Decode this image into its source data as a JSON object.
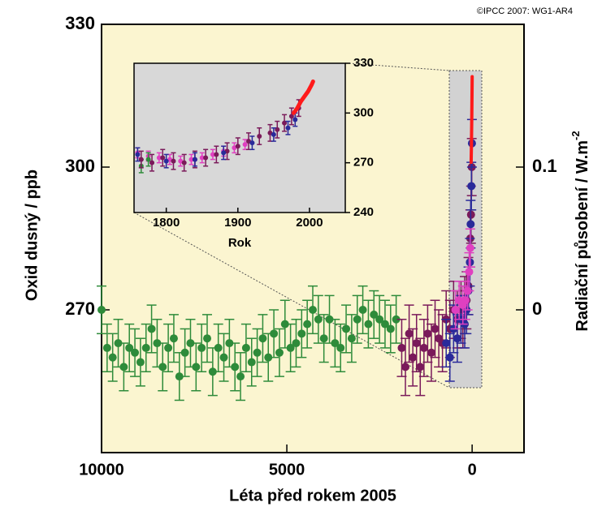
{
  "chart_data": [
    {
      "type": "scatter",
      "xlabel": "Léta před rokem 2005",
      "ylabel": "Oxid dusný  /  ppb",
      "y2label": "Radiační působení  /  W.m",
      "y2label_sup": "-2",
      "credit": "©IPCC 2007: WG1-AR4",
      "xlim": [
        10000,
        -1400
      ],
      "xticks": [
        10000,
        5000,
        0
      ],
      "ylim": [
        240,
        330
      ],
      "yticks": [
        270,
        300,
        330
      ],
      "y2lim": [
        -0.1,
        0.2
      ],
      "y2ticks": [
        0,
        0.1
      ],
      "series": [
        {
          "color": "#2e8b3a",
          "yerr": 5,
          "x": [
            10000,
            9850,
            9700,
            9550,
            9400,
            9250,
            9100,
            8950,
            8800,
            8650,
            8500,
            8350,
            8200,
            8050,
            7900,
            7750,
            7600,
            7450,
            7300,
            7150,
            7000,
            6850,
            6700,
            6550,
            6400,
            6250,
            6100,
            5950,
            5800,
            5650,
            5500,
            5350,
            5200,
            5050,
            4900,
            4750,
            4600,
            4450,
            4300,
            4150,
            4000,
            3850,
            3700,
            3550,
            3400,
            3250,
            3100,
            2950,
            2800,
            2650,
            2500,
            2350,
            2200,
            2050
          ],
          "values": [
            270,
            262,
            260,
            263,
            258,
            262,
            261,
            259,
            262,
            266,
            263,
            258,
            262,
            264,
            256,
            261,
            263,
            258,
            262,
            264,
            257,
            262,
            260,
            263,
            258,
            256,
            262,
            259,
            261,
            264,
            260,
            265,
            261,
            267,
            262,
            263,
            265,
            267,
            270,
            268,
            264,
            268,
            263,
            262,
            266,
            264,
            268,
            270,
            267,
            269,
            268,
            267,
            266,
            268
          ]
        },
        {
          "color": "#7a1a5a",
          "yerr": 6,
          "x": [
            1900,
            1800,
            1700,
            1600,
            1500,
            1400,
            1300,
            1200,
            1100,
            1000,
            900,
            800,
            700,
            600,
            500,
            400,
            300,
            250,
            200,
            150,
            100,
            50,
            30,
            10
          ],
          "values": [
            262,
            258,
            265,
            260,
            263,
            258,
            262,
            265,
            261,
            266,
            264,
            263,
            268,
            266,
            270,
            268,
            270,
            268,
            271,
            272,
            275,
            285,
            290,
            300
          ]
        },
        {
          "color": "#2a2a9a",
          "yerr": 5,
          "x": [
            700,
            600,
            500,
            400,
            300,
            200,
            150,
            100,
            60,
            40,
            20,
            5
          ],
          "values": [
            263,
            260,
            266,
            264,
            268,
            267,
            270,
            274,
            280,
            288,
            296,
            305
          ]
        },
        {
          "color": "#e040c0",
          "yerr": 4,
          "x": [
            450,
            350,
            250,
            180,
            120,
            80,
            50
          ],
          "values": [
            270,
            272,
            271,
            272,
            274,
            278,
            283
          ]
        },
        {
          "color": "#ff1a1a",
          "type": "line",
          "x": [
            27,
            20,
            15,
            10,
            5,
            0,
            -1
          ],
          "values": [
            301,
            304,
            307,
            310,
            314,
            318,
            319
          ]
        }
      ]
    },
    {
      "type": "scatter",
      "xlabel": "Rok",
      "xlim": [
        1755,
        2050
      ],
      "xticks": [
        1800,
        1900,
        2000
      ],
      "ylim": [
        240,
        330
      ],
      "yticks": [
        240,
        270,
        300,
        330
      ],
      "series": [
        {
          "color": "#e040c0",
          "yerr": 3,
          "x": [
            1760,
            1775,
            1790,
            1805,
            1820,
            1835,
            1850,
            1865,
            1880,
            1895,
            1910
          ],
          "values": [
            276,
            274,
            273,
            272,
            271,
            272,
            273,
            275,
            277,
            279,
            281
          ]
        },
        {
          "color": "#2e8b3a",
          "yerr": 4,
          "x": [
            1765,
            1775
          ],
          "values": [
            268,
            272
          ]
        },
        {
          "color": "#7a1a5a",
          "yerr": 5,
          "x": [
            1765,
            1780,
            1795,
            1810,
            1825,
            1840,
            1855,
            1870,
            1885,
            1900,
            1915,
            1930,
            1945,
            1955,
            1965,
            1975,
            1985
          ],
          "values": [
            272,
            270,
            273,
            271,
            270,
            272,
            273,
            275,
            277,
            280,
            283,
            286,
            288,
            290,
            294,
            298,
            303
          ]
        },
        {
          "color": "#2a2a9a",
          "yerr": 4,
          "x": [
            1760,
            1800,
            1840,
            1880,
            1920,
            1950,
            1970,
            1980
          ],
          "values": [
            275,
            271,
            272,
            276,
            282,
            287,
            291,
            296
          ]
        },
        {
          "color": "#ff1a1a",
          "type": "line",
          "x": [
            1978,
            1983,
            1988,
            1993,
            1998,
            2003,
            2005
          ],
          "values": [
            300,
            303,
            307,
            310,
            313,
            317,
            319
          ]
        }
      ]
    }
  ]
}
